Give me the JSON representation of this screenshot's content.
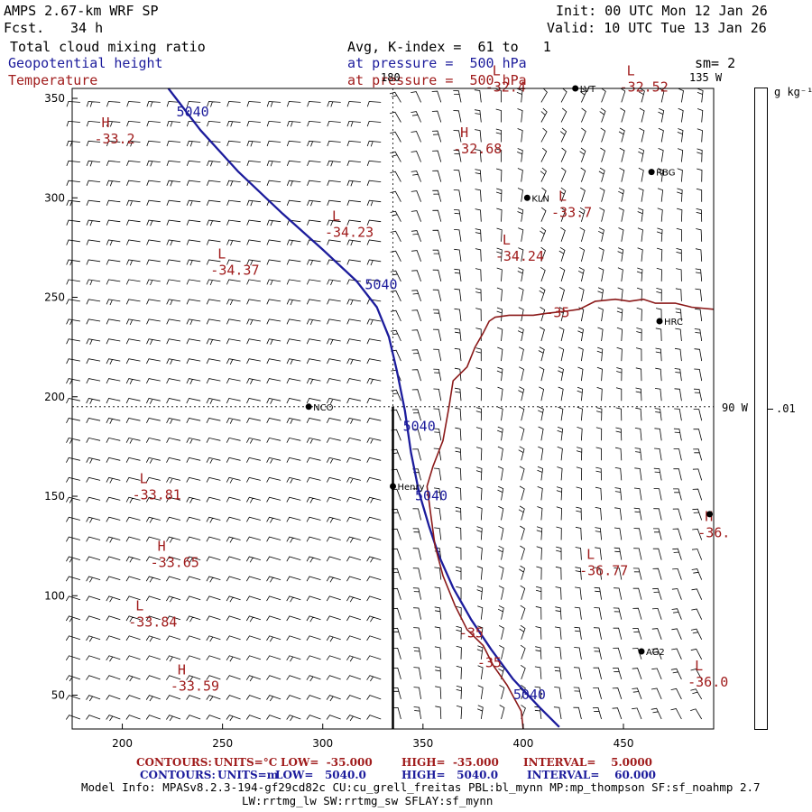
{
  "header": {
    "model": "AMPS 2.67-km WRF SP",
    "fcst_label": "Fcst.",
    "fcst_value": "34 h",
    "init": "Init: 00 UTC Mon 12 Jan 26",
    "valid": "Valid: 10 UTC Tue 13 Jan 26",
    "field1": "Total cloud mixing ratio",
    "field2": "Geopotential height",
    "field3": "Temperature",
    "avg_line": "Avg, K-index =  61 to   1",
    "pressure_line1": "at pressure =  500 hPa",
    "pressure_line2": "at pressure =  500 hPa",
    "sm": "sm= 2",
    "lon_135": "135 W",
    "lon_180": "180",
    "lon_90": "90 W"
  },
  "colorbar": {
    "unit": "g kg⁻¹",
    "tick": ".01"
  },
  "chart_data": {
    "type": "contour",
    "title": "Total cloud mixing ratio / Geopotential height / Temperature at 500 hPa",
    "xlim": [
      175,
      495
    ],
    "ylim": [
      33,
      355
    ],
    "x_ticks": [
      200,
      250,
      300,
      350,
      400,
      450
    ],
    "y_ticks": [
      50,
      100,
      150,
      200,
      250,
      300,
      350
    ],
    "grid_lines": {
      "x": [
        335
      ],
      "y": [
        195
      ]
    },
    "geopotential_contour": {
      "value": 5040,
      "units": "m",
      "points": [
        [
          223,
          355
        ],
        [
          239,
          334
        ],
        [
          258,
          313
        ],
        [
          280,
          292
        ],
        [
          300,
          274
        ],
        [
          317,
          258
        ],
        [
          327,
          245
        ],
        [
          333,
          230
        ],
        [
          337,
          213
        ],
        [
          341,
          193
        ],
        [
          344,
          172
        ],
        [
          348,
          152
        ],
        [
          353,
          135
        ],
        [
          358,
          120
        ],
        [
          365,
          104
        ],
        [
          374,
          88
        ],
        [
          384,
          73
        ],
        [
          395,
          58
        ],
        [
          408,
          44
        ],
        [
          418,
          34
        ]
      ],
      "labels": [
        {
          "text": "5040",
          "x": 227,
          "y": 341
        },
        {
          "text": "5040",
          "x": 321,
          "y": 254
        },
        {
          "text": "5040",
          "x": 340,
          "y": 183
        },
        {
          "text": "5040",
          "x": 346,
          "y": 148
        },
        {
          "text": "5040",
          "x": 395,
          "y": 48
        }
      ]
    },
    "temperature_contour": {
      "value": -35,
      "units": "°C",
      "points": [
        [
          400,
          33
        ],
        [
          399,
          42
        ],
        [
          392,
          55
        ],
        [
          385,
          65
        ],
        [
          380,
          75
        ],
        [
          372,
          83
        ],
        [
          366,
          95
        ],
        [
          360,
          110
        ],
        [
          356,
          125
        ],
        [
          354,
          140
        ],
        [
          352,
          155
        ],
        [
          355,
          165
        ],
        [
          360,
          178
        ],
        [
          363,
          195
        ],
        [
          365,
          208
        ],
        [
          372,
          215
        ],
        [
          376,
          225
        ],
        [
          380,
          232
        ],
        [
          383,
          238
        ],
        [
          386,
          240
        ],
        [
          393,
          241
        ],
        [
          405,
          241
        ],
        [
          412,
          242
        ],
        [
          421,
          243
        ],
        [
          428,
          244
        ],
        [
          436,
          248
        ],
        [
          446,
          249
        ],
        [
          453,
          248
        ],
        [
          460,
          249
        ],
        [
          466,
          247
        ],
        [
          476,
          247
        ],
        [
          484,
          245
        ],
        [
          495,
          244
        ]
      ],
      "labels": [
        {
          "text": "-35",
          "x": 368,
          "y": 79
        },
        {
          "text": "-35",
          "x": 377,
          "y": 64
        },
        {
          "text": "-35",
          "x": 411,
          "y": 240
        }
      ]
    },
    "hl_markers": [
      {
        "type": "H",
        "value": "-33.2",
        "x": 186,
        "y": 331
      },
      {
        "type": "L",
        "value": "-34.23",
        "x": 301,
        "y": 284
      },
      {
        "type": "L",
        "value": "-34.37",
        "x": 244,
        "y": 265
      },
      {
        "type": "H",
        "value": "-32.68",
        "x": 365,
        "y": 326
      },
      {
        "type": "L",
        "value": "-32.4",
        "x": 381,
        "y": 357
      },
      {
        "type": "L",
        "value": "-32.52",
        "x": 448,
        "y": 357
      },
      {
        "type": "L",
        "value": "-33.7",
        "x": 414,
        "y": 294
      },
      {
        "type": "L",
        "value": "-34.24",
        "x": 386,
        "y": 272
      },
      {
        "type": "L",
        "value": "-33.81",
        "x": 205,
        "y": 152
      },
      {
        "type": "H",
        "value": "-33.65",
        "x": 214,
        "y": 118
      },
      {
        "type": "L",
        "value": "-33.84",
        "x": 203,
        "y": 88
      },
      {
        "type": "H",
        "value": "-33.59",
        "x": 224,
        "y": 56
      },
      {
        "type": "L",
        "value": "-36.77",
        "x": 428,
        "y": 114
      },
      {
        "type": "H",
        "value": "-36.",
        "x": 487,
        "y": 133
      },
      {
        "type": "L",
        "value": "-36.0",
        "x": 482,
        "y": 58
      }
    ],
    "stations": [
      {
        "name": "LVT",
        "x": 426,
        "y": 355
      },
      {
        "name": "RBG",
        "x": 464,
        "y": 313
      },
      {
        "name": "KLN",
        "x": 402,
        "y": 300
      },
      {
        "name": "HRC",
        "x": 468,
        "y": 238
      },
      {
        "name": "NCO",
        "x": 293,
        "y": 195
      },
      {
        "name": "Henry",
        "x": 335,
        "y": 155
      },
      {
        "name": "AG2",
        "x": 459,
        "y": 72
      },
      {
        "name": "",
        "x": 493,
        "y": 141
      }
    ],
    "wind_field": {
      "barb_spacing_x": 10,
      "barb_spacing_y": 10
    }
  },
  "footer": {
    "row1_label": "CONTOURS:",
    "row1_units": "UNITS=°C",
    "row1_low": "LOW=  -35.000",
    "row1_high": "HIGH=  -35.000",
    "row1_interval": "INTERVAL=    5.0000",
    "row2_label": "CONTOURS:",
    "row2_units": "UNITS=m",
    "row2_low": "LOW=   5040.0",
    "row2_high": "HIGH=   5040.0",
    "row2_interval": "INTERVAL=    60.000",
    "model_info": "Model Info: MPASv8.2.3-194-gf29cd82c CU:cu_grell_freitas PBL:bl_mynn MP:mp_thompson SF:sf_noahmp 2.7",
    "model_info2": "LW:rrtmg_lw SW:rrtmg_sw SFLAY:sf_mynn"
  }
}
